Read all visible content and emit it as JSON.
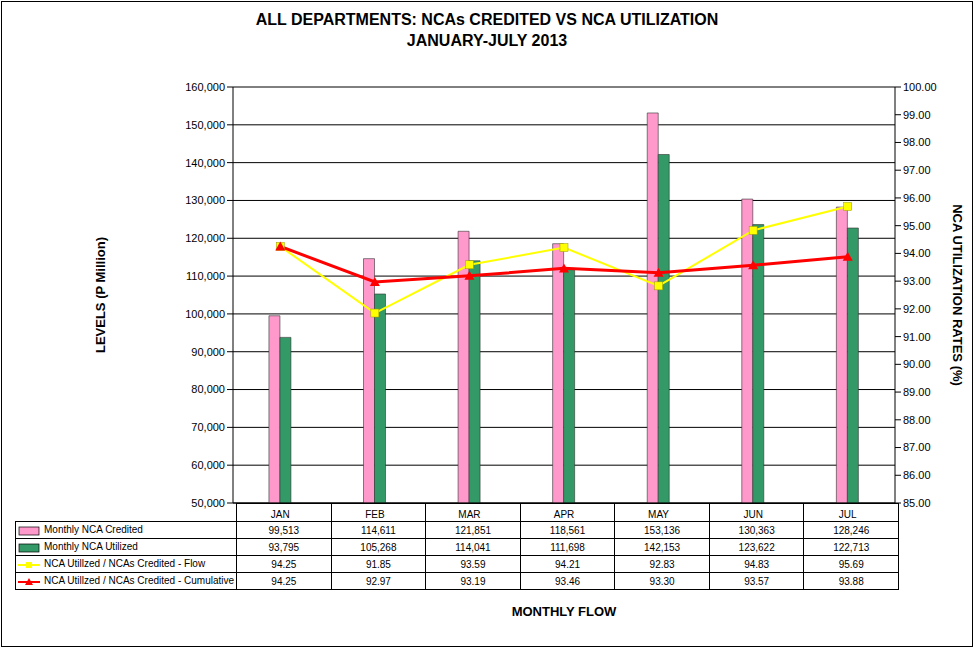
{
  "chart_data": {
    "type": "bar",
    "title": "ALL DEPARTMENTS: NCAs CREDITED VS NCA UTILIZATION",
    "subtitle": "JANUARY-JULY 2013",
    "x_label": "MONTHLY FLOW",
    "y_label": "LEVELS (P Million)",
    "y2_label": "NCA UTILIZATION RATES (%)",
    "categories": [
      "JAN",
      "FEB",
      "MAR",
      "APR",
      "MAY",
      "JUN",
      "JUL"
    ],
    "series": [
      {
        "name": "Monthly NCA Credited",
        "type": "bar",
        "color": "#ff99cc",
        "values": [
          99513,
          114611,
          121851,
          118561,
          153136,
          130363,
          128246
        ],
        "value_labels": [
          "99,513",
          "114,611",
          "121,851",
          "118,561",
          "153,136",
          "130,363",
          "128,246"
        ]
      },
      {
        "name": "Monthly NCA Utilized",
        "type": "bar",
        "color": "#339966",
        "values": [
          93795,
          105268,
          114041,
          111698,
          142153,
          123622,
          122713
        ],
        "value_labels": [
          "93,795",
          "105,268",
          "114,041",
          "111,698",
          "142,153",
          "123,622",
          "122,713"
        ]
      },
      {
        "name": "NCA Utillzed / NCAs Credited - Flow",
        "type": "line",
        "axis": "y2",
        "color": "#ffff00",
        "marker": "square",
        "values": [
          94.25,
          91.85,
          93.59,
          94.21,
          92.83,
          94.83,
          95.69
        ],
        "value_labels": [
          "94.25",
          "91.85",
          "93.59",
          "94.21",
          "92.83",
          "94.83",
          "95.69"
        ]
      },
      {
        "name": "NCA Utillzed / NCAs Credited - Cumulative",
        "type": "line",
        "axis": "y2",
        "color": "#ff0000",
        "marker": "triangle",
        "values": [
          94.25,
          92.97,
          93.19,
          93.46,
          93.3,
          93.57,
          93.88
        ],
        "value_labels": [
          "94.25",
          "92.97",
          "93.19",
          "93.46",
          "93.30",
          "93.57",
          "93.88"
        ]
      }
    ],
    "ylim": [
      50000,
      160000
    ],
    "yticks": [
      {
        "value": 50000,
        "label": "50,000"
      },
      {
        "value": 60000,
        "label": "60,000"
      },
      {
        "value": 70000,
        "label": "70,000"
      },
      {
        "value": 80000,
        "label": "80,000"
      },
      {
        "value": 90000,
        "label": "90,000"
      },
      {
        "value": 100000,
        "label": "100,000"
      },
      {
        "value": 110000,
        "label": "110,000"
      },
      {
        "value": 120000,
        "label": "120,000"
      },
      {
        "value": 130000,
        "label": "130,000"
      },
      {
        "value": 140000,
        "label": "140,000"
      },
      {
        "value": 150000,
        "label": "150,000"
      },
      {
        "value": 160000,
        "label": "160,000"
      }
    ],
    "y2lim": [
      85,
      100
    ],
    "y2ticks": [
      {
        "value": 85,
        "label": "85.00"
      },
      {
        "value": 86,
        "label": "86.00"
      },
      {
        "value": 87,
        "label": "87.00"
      },
      {
        "value": 88,
        "label": "88.00"
      },
      {
        "value": 89,
        "label": "89.00"
      },
      {
        "value": 90,
        "label": "90.00"
      },
      {
        "value": 91,
        "label": "91.00"
      },
      {
        "value": 92,
        "label": "92.00"
      },
      {
        "value": 93,
        "label": "93.00"
      },
      {
        "value": 94,
        "label": "94.00"
      },
      {
        "value": 95,
        "label": "95.00"
      },
      {
        "value": 96,
        "label": "96.00"
      },
      {
        "value": 97,
        "label": "97.00"
      },
      {
        "value": 98,
        "label": "98.00"
      },
      {
        "value": 99,
        "label": "99.00"
      },
      {
        "value": 100,
        "label": "100.00"
      }
    ],
    "grid": true
  }
}
